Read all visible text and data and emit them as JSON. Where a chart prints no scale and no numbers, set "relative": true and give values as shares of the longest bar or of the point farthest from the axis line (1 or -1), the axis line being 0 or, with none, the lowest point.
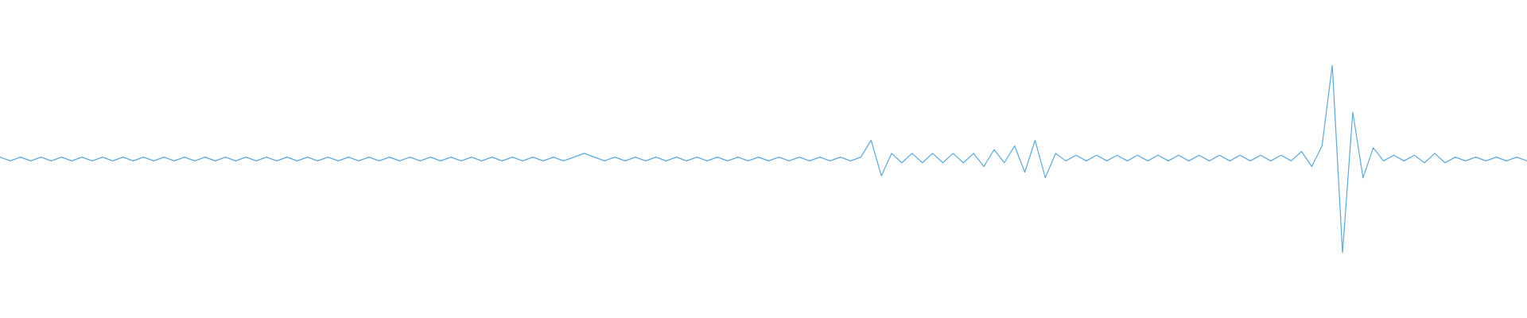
{
  "chart_data": {
    "type": "line",
    "relative": true,
    "marker": "none",
    "categories": [
      null,
      null,
      null,
      null,
      null,
      null,
      null,
      null,
      null,
      null,
      null,
      null,
      null,
      null,
      null,
      null,
      null,
      null,
      null,
      null,
      null,
      null,
      null,
      null,
      null,
      null,
      null,
      null,
      null,
      null,
      null,
      null,
      null,
      null,
      null,
      null,
      null,
      null,
      null,
      null,
      null,
      null,
      null,
      null,
      null,
      null,
      null,
      null,
      null,
      null,
      null,
      null,
      null,
      null,
      null,
      null,
      null,
      null,
      null,
      null,
      null,
      null,
      null,
      null,
      null,
      null,
      null,
      null,
      null,
      null,
      null,
      null,
      null,
      null,
      null,
      null,
      null,
      null,
      null,
      null,
      null,
      null,
      null,
      null,
      null,
      null,
      null,
      null,
      null,
      null,
      null,
      null,
      null,
      null,
      null,
      null,
      null,
      null,
      null,
      null,
      null,
      null,
      null,
      null,
      null,
      null,
      null,
      null,
      null,
      null,
      null,
      null,
      null,
      null,
      null,
      null,
      null,
      null,
      null,
      null,
      null,
      null,
      null,
      null,
      null,
      null,
      null,
      null,
      null,
      null,
      null,
      null,
      null,
      null,
      null,
      null,
      null,
      null,
      null,
      null,
      null,
      null,
      null,
      null,
      null,
      null,
      null,
      null,
      null,
      null
    ],
    "series": [
      {
        "color": "#5aa9e0",
        "values": [
          0.51,
          0.49,
          0.51,
          0.49,
          0.51,
          0.49,
          0.51,
          0.49,
          0.51,
          0.49,
          0.51,
          0.49,
          0.51,
          0.49,
          0.51,
          0.49,
          0.51,
          0.49,
          0.51,
          0.49,
          0.51,
          0.49,
          0.51,
          0.49,
          0.51,
          0.49,
          0.51,
          0.49,
          0.51,
          0.49,
          0.51,
          0.49,
          0.51,
          0.49,
          0.51,
          0.49,
          0.51,
          0.49,
          0.51,
          0.49,
          0.51,
          0.49,
          0.51,
          0.49,
          0.51,
          0.49,
          0.51,
          0.49,
          0.51,
          0.49,
          0.51,
          0.49,
          0.51,
          0.49,
          0.51,
          0.49,
          0.51,
          0.53,
          0.51,
          0.49,
          0.51,
          0.49,
          0.51,
          0.49,
          0.51,
          0.49,
          0.51,
          0.49,
          0.51,
          0.49,
          0.51,
          0.49,
          0.51,
          0.49,
          0.51,
          0.49,
          0.51,
          0.49,
          0.51,
          0.49,
          0.51,
          0.49,
          0.51,
          0.49,
          0.51,
          0.6,
          0.41,
          0.53,
          0.48,
          0.53,
          0.48,
          0.53,
          0.48,
          0.53,
          0.48,
          0.53,
          0.46,
          0.55,
          0.48,
          0.57,
          0.43,
          0.6,
          0.4,
          0.53,
          0.49,
          0.52,
          0.49,
          0.52,
          0.49,
          0.52,
          0.49,
          0.52,
          0.49,
          0.52,
          0.49,
          0.52,
          0.49,
          0.52,
          0.49,
          0.52,
          0.49,
          0.52,
          0.49,
          0.52,
          0.49,
          0.52,
          0.49,
          0.54,
          0.46,
          0.57,
          1,
          0,
          0.75,
          0.4,
          0.56,
          0.49,
          0.52,
          0.49,
          0.52,
          0.48,
          0.53,
          0.48,
          0.51,
          0.49,
          0.51,
          0.49,
          0.51,
          0.49,
          0.51,
          0.49
        ]
      }
    ]
  }
}
